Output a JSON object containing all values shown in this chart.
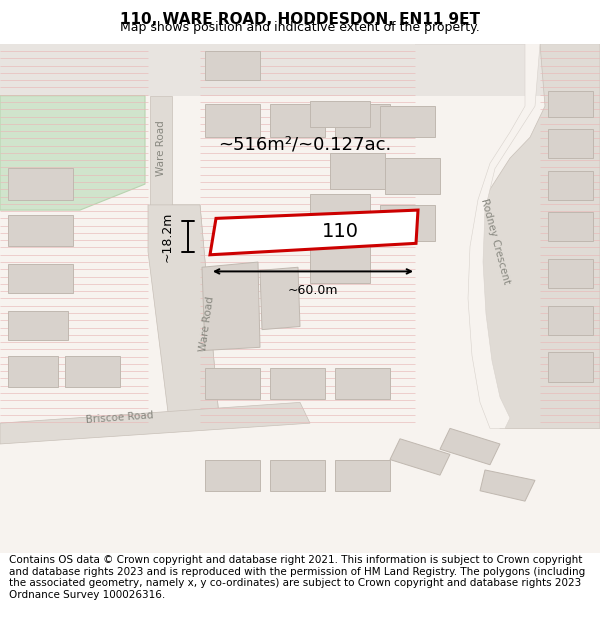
{
  "title": "110, WARE ROAD, HODDESDON, EN11 9ET",
  "subtitle": "Map shows position and indicative extent of the property.",
  "footer": "Contains OS data © Crown copyright and database right 2021. This information is subject to Crown copyright and database rights 2023 and is reproduced with the permission of HM Land Registry. The polygons (including the associated geometry, namely x, y co-ordinates) are subject to Crown copyright and database rights 2023 Ordnance Survey 100026316.",
  "bg_color": "#f7f3ef",
  "road_color": "#e8e4e0",
  "building_fill": "#d8d2cc",
  "building_edge": "#c0b8b0",
  "highlight_edge": "#cc0000",
  "green_fill": "#d0e4cc",
  "green_edge": "#b8d4b0",
  "stripe_color": "#e8b8b8",
  "area_text": "~516m²/~0.127ac.",
  "label_110": "110",
  "dim_width": "~60.0m",
  "dim_height": "~18.2m",
  "road_label_ware_upper": "Ware Road",
  "road_label_ware_lower": "Ware Road",
  "road_label_rodney": "Rodney Crescent",
  "road_label_briscoe": "Briscoe Road",
  "title_fontsize": 11,
  "subtitle_fontsize": 9,
  "footer_fontsize": 7.5
}
